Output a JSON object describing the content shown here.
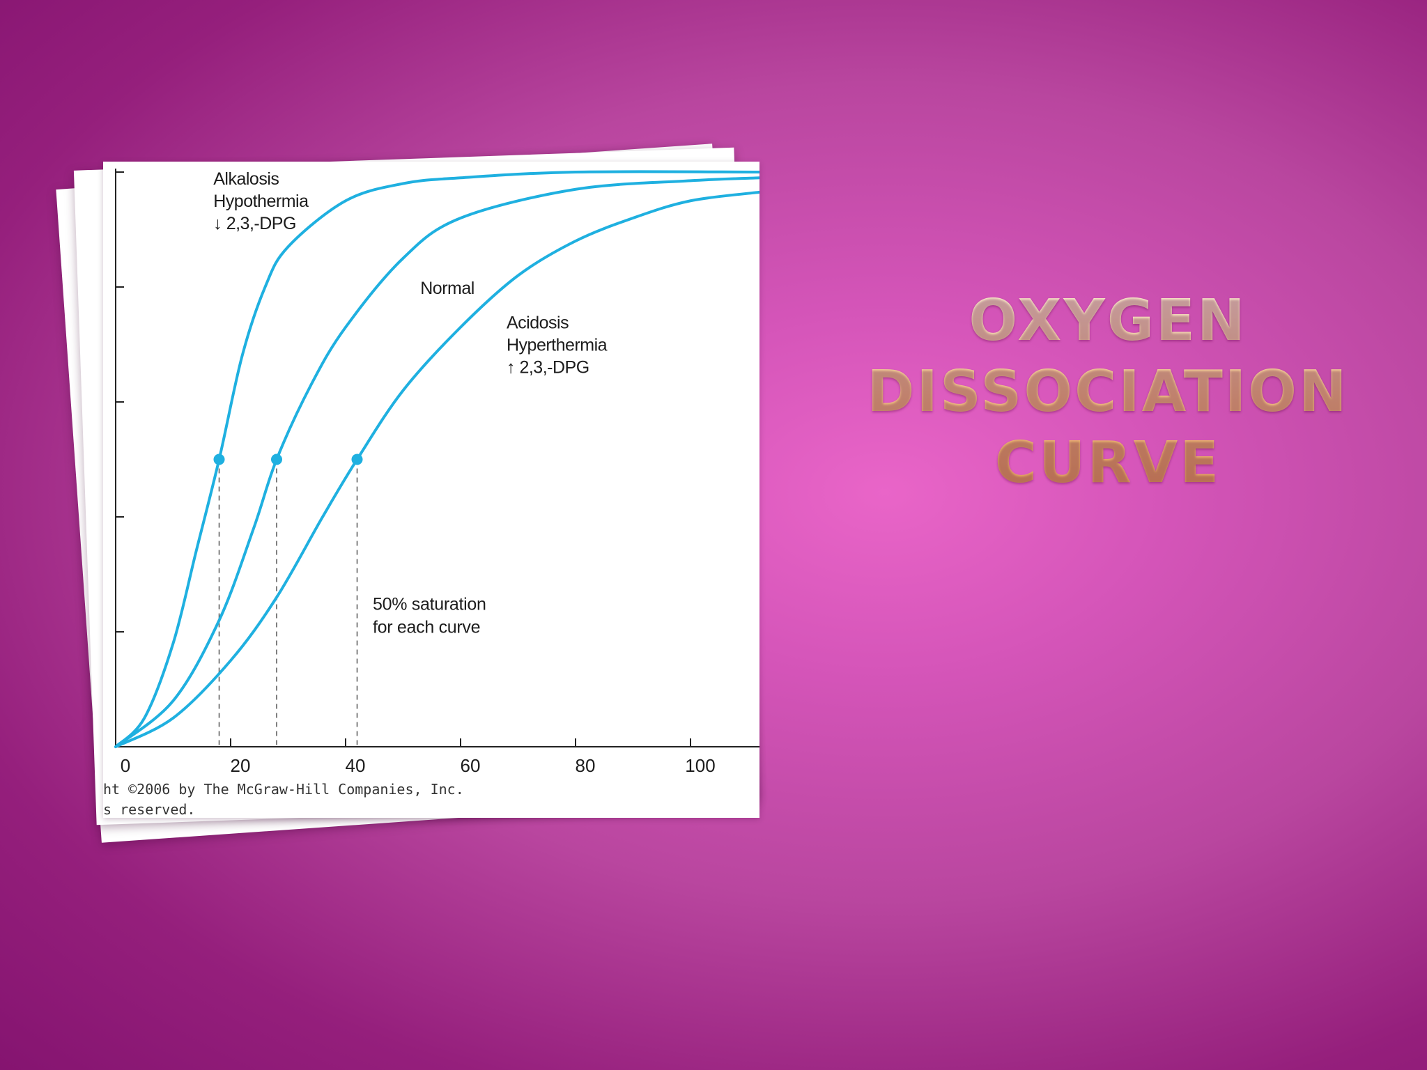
{
  "slide": {
    "title_lines": [
      "OXYGEN",
      "DISSOCIATION",
      "CURVE"
    ],
    "title_color": "#f6c483",
    "background_color": "#d555b9"
  },
  "chart_data": {
    "type": "line",
    "title": "",
    "xlabel": "",
    "ylabel": "",
    "xlim": [
      0,
      112
    ],
    "ylim": [
      0,
      100
    ],
    "x_ticks": [
      0,
      20,
      40,
      60,
      80,
      100
    ],
    "x_tick_labels": [
      "0",
      "20",
      "40",
      "60",
      "80",
      "100"
    ],
    "grid": false,
    "line_color": "#1fb0e0",
    "series": [
      {
        "name": "",
        "p50": 18,
        "points": [
          [
            0,
            0
          ],
          [
            5,
            5
          ],
          [
            10,
            18
          ],
          [
            14,
            34
          ],
          [
            18,
            50
          ],
          [
            22,
            68
          ],
          [
            26,
            80
          ],
          [
            30,
            87
          ],
          [
            40,
            95
          ],
          [
            50,
            98
          ],
          [
            60,
            99
          ],
          [
            80,
            100
          ],
          [
            112,
            100
          ]
        ]
      },
      {
        "name": "",
        "p50": 28,
        "points": [
          [
            0,
            0
          ],
          [
            10,
            8
          ],
          [
            18,
            22
          ],
          [
            24,
            38
          ],
          [
            28,
            50
          ],
          [
            34,
            63
          ],
          [
            40,
            73
          ],
          [
            50,
            85
          ],
          [
            60,
            92
          ],
          [
            80,
            97
          ],
          [
            100,
            98.5
          ],
          [
            112,
            99
          ]
        ]
      },
      {
        "name": "",
        "p50": 42,
        "points": [
          [
            0,
            0
          ],
          [
            10,
            5
          ],
          [
            20,
            15
          ],
          [
            28,
            26
          ],
          [
            36,
            40
          ],
          [
            42,
            50
          ],
          [
            50,
            62
          ],
          [
            60,
            73
          ],
          [
            70,
            82
          ],
          [
            80,
            88
          ],
          [
            90,
            92
          ],
          [
            100,
            95
          ],
          [
            112,
            96.5
          ]
        ]
      }
    ],
    "curve_labels": [
      {
        "lines": [
          "Alkalosis",
          "Hypothermia",
          "↓ 2,3,-DPG"
        ],
        "x": 17,
        "y": 100
      },
      {
        "lines": [
          "Normal"
        ],
        "x": 53,
        "y": 81
      },
      {
        "lines": [
          "Acidosis",
          "Hyperthermia",
          "↑ 2,3,-DPG"
        ],
        "x": 68,
        "y": 75
      }
    ],
    "markers": [
      {
        "x": 18,
        "y": 50
      },
      {
        "x": 28,
        "y": 50
      },
      {
        "x": 42,
        "y": 50
      }
    ],
    "annotation": {
      "lines": [
        "50% saturation",
        "for each curve"
      ],
      "x": 44,
      "y": 26
    },
    "copyright_lines": [
      "ht ©2006 by The McGraw-Hill Companies, Inc.",
      "s reserved."
    ]
  }
}
